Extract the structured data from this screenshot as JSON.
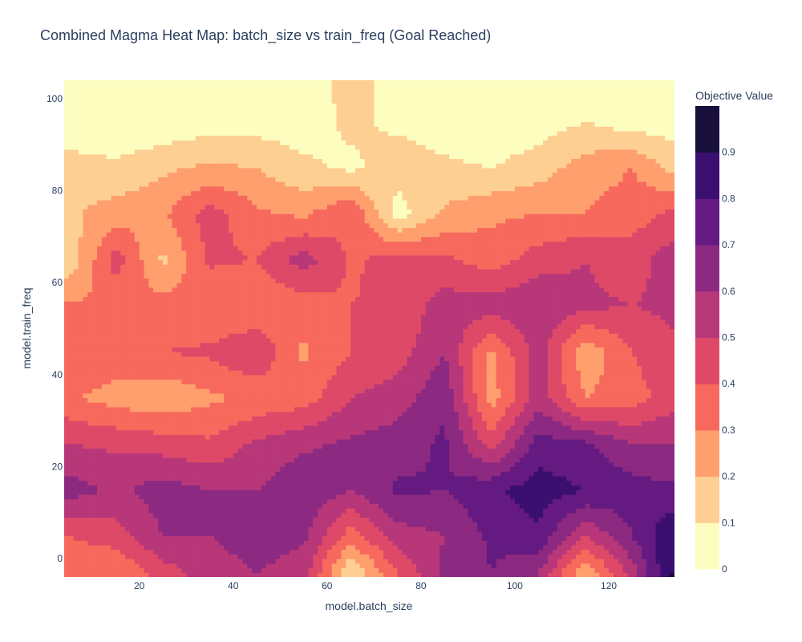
{
  "chart_data": {
    "type": "heatmap",
    "subtype": "contour",
    "title": "Combined Magma Heat Map: batch_size vs train_freq (Goal Reached)",
    "xlabel": "model.batch_size",
    "ylabel": "model.train_freq",
    "xlim": [
      4,
      134
    ],
    "ylim": [
      -4,
      104
    ],
    "x_ticks": [
      "20",
      "40",
      "60",
      "80",
      "100",
      "120"
    ],
    "y_ticks": [
      "0",
      "20",
      "40",
      "60",
      "80",
      "100"
    ],
    "colorscale": "Magma (reversed)",
    "colorbar": {
      "title": "Objective Value",
      "range": [
        0,
        1
      ],
      "ticks": [
        "0",
        "0.1",
        "0.2",
        "0.3",
        "0.4",
        "0.5",
        "0.6",
        "0.7",
        "0.8",
        "0.9"
      ]
    },
    "contour_levels": [
      0,
      0.1,
      0.2,
      0.3,
      0.4,
      0.5,
      0.6,
      0.7,
      0.8,
      0.9,
      1.0
    ],
    "level_colors": [
      "#fcfdbf",
      "#fecf92",
      "#fe9f6d",
      "#f6695c",
      "#de4968",
      "#b73779",
      "#8c2981",
      "#641a80",
      "#3b0f70",
      "#180f3d",
      "#000004"
    ],
    "x": [
      5,
      15,
      25,
      35,
      45,
      55,
      65,
      75,
      85,
      95,
      105,
      115,
      125,
      133
    ],
    "y": [
      -3,
      5,
      15,
      25,
      35,
      45,
      55,
      65,
      75,
      85,
      95,
      103
    ],
    "z": [
      [
        0.32,
        0.3,
        0.45,
        0.55,
        0.6,
        0.55,
        0.1,
        0.4,
        0.62,
        0.7,
        0.6,
        0.2,
        0.55,
        0.9
      ],
      [
        0.4,
        0.45,
        0.6,
        0.6,
        0.65,
        0.62,
        0.35,
        0.55,
        0.6,
        0.72,
        0.78,
        0.5,
        0.7,
        0.88
      ],
      [
        0.65,
        0.58,
        0.65,
        0.6,
        0.6,
        0.68,
        0.6,
        0.72,
        0.7,
        0.78,
        0.85,
        0.8,
        0.75,
        0.72
      ],
      [
        0.5,
        0.48,
        0.45,
        0.42,
        0.52,
        0.58,
        0.62,
        0.65,
        0.72,
        0.45,
        0.75,
        0.72,
        0.6,
        0.6
      ],
      [
        0.32,
        0.25,
        0.22,
        0.28,
        0.32,
        0.35,
        0.5,
        0.55,
        0.68,
        0.25,
        0.55,
        0.3,
        0.35,
        0.45
      ],
      [
        0.38,
        0.38,
        0.4,
        0.42,
        0.5,
        0.28,
        0.4,
        0.45,
        0.6,
        0.28,
        0.55,
        0.22,
        0.4,
        0.48
      ],
      [
        0.32,
        0.3,
        0.35,
        0.3,
        0.3,
        0.35,
        0.4,
        0.42,
        0.55,
        0.55,
        0.6,
        0.52,
        0.5,
        0.52
      ],
      [
        0.12,
        0.45,
        0.18,
        0.42,
        0.4,
        0.55,
        0.38,
        0.45,
        0.42,
        0.35,
        0.45,
        0.5,
        0.45,
        0.55
      ],
      [
        0.18,
        0.25,
        0.28,
        0.45,
        0.32,
        0.28,
        0.4,
        0.05,
        0.22,
        0.28,
        0.3,
        0.3,
        0.35,
        0.42
      ],
      [
        0.15,
        0.12,
        0.18,
        0.22,
        0.2,
        0.12,
        0.08,
        0.15,
        0.12,
        0.1,
        0.15,
        0.25,
        0.3,
        0.18
      ],
      [
        0.02,
        0.02,
        0.02,
        0.05,
        0.05,
        0.05,
        0.12,
        0.08,
        0.05,
        0.02,
        0.05,
        0.1,
        0.05,
        0.05
      ],
      [
        0.02,
        0.02,
        0.02,
        0.02,
        0.02,
        0.02,
        0.15,
        0.05,
        0.02,
        0.02,
        0.02,
        0.05,
        0.02,
        0.02
      ]
    ]
  }
}
